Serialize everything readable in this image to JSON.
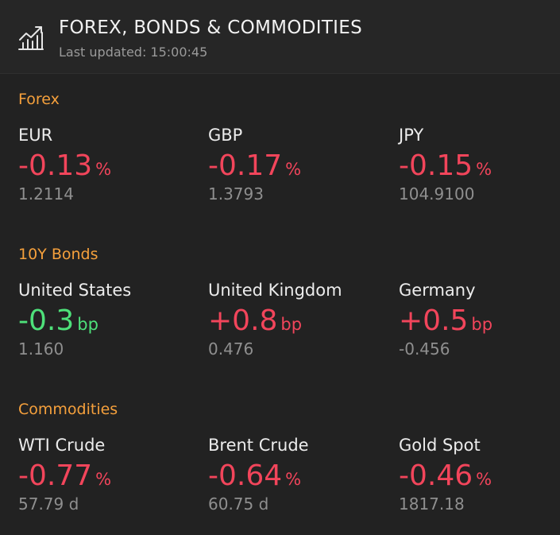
{
  "header": {
    "icon": "chart-trend-icon",
    "title": "FOREX, BONDS & COMMODITIES",
    "last_updated": "Last updated: 15:00:45"
  },
  "colors": {
    "accent": "#f5a03c",
    "negative": "#f2455b",
    "positive": "#4ee17a",
    "background": "#222222"
  },
  "sections": [
    {
      "title": "Forex",
      "items": [
        {
          "name": "EUR",
          "change": "-0.13",
          "unit": "%",
          "value": "1.2114",
          "direction": "down"
        },
        {
          "name": "GBP",
          "change": "-0.17",
          "unit": "%",
          "value": "1.3793",
          "direction": "down"
        },
        {
          "name": "JPY",
          "change": "-0.15",
          "unit": "%",
          "value": "104.9100",
          "direction": "down"
        }
      ]
    },
    {
      "title": "10Y Bonds",
      "items": [
        {
          "name": "United States",
          "change": "-0.3",
          "unit": "bp",
          "value": "1.160",
          "direction": "up"
        },
        {
          "name": "United Kingdom",
          "change": "+0.8",
          "unit": "bp",
          "value": "0.476",
          "direction": "down"
        },
        {
          "name": "Germany",
          "change": "+0.5",
          "unit": "bp",
          "value": "-0.456",
          "direction": "down"
        }
      ]
    },
    {
      "title": "Commodities",
      "items": [
        {
          "name": "WTI Crude",
          "change": "-0.77",
          "unit": "%",
          "value": "57.79 d",
          "direction": "down"
        },
        {
          "name": "Brent Crude",
          "change": "-0.64",
          "unit": "%",
          "value": "60.75 d",
          "direction": "down"
        },
        {
          "name": "Gold Spot",
          "change": "-0.46",
          "unit": "%",
          "value": "1817.18",
          "direction": "down"
        }
      ]
    }
  ]
}
